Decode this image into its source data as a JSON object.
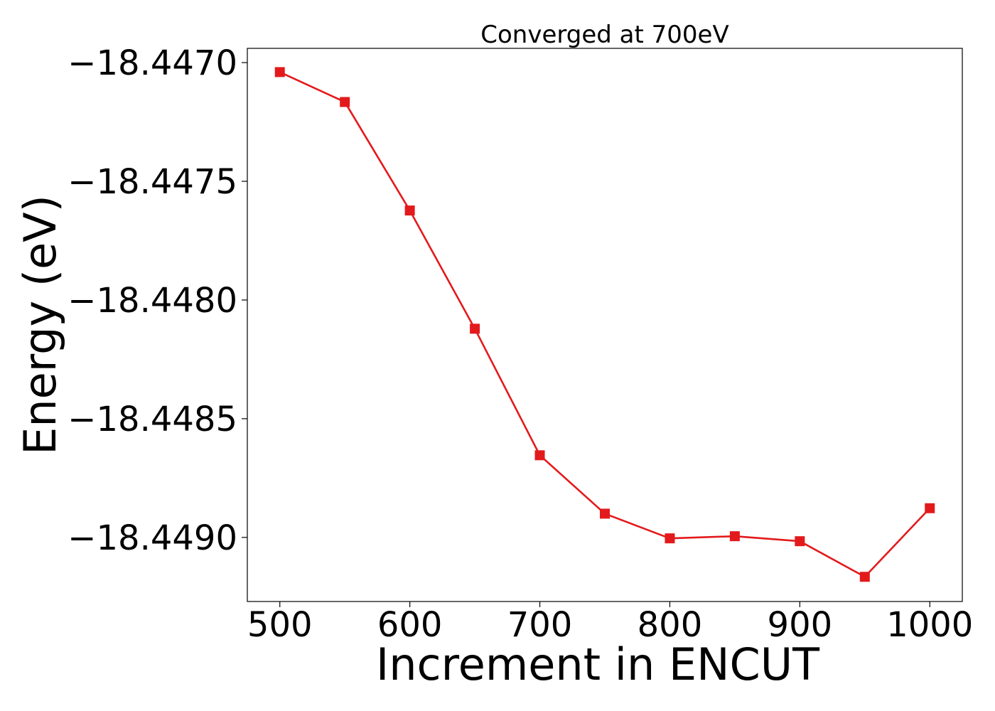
{
  "chart_data": {
    "type": "line",
    "title": "Converged at 700eV",
    "xlabel": "Increment in ENCUT",
    "ylabel": "Energy (eV)",
    "xlim": [
      475,
      1025
    ],
    "ylim": [
      -18.44927,
      -18.44694
    ],
    "xticks": [
      500,
      600,
      700,
      800,
      900,
      1000
    ],
    "xtick_labels": [
      "500",
      "600",
      "700",
      "800",
      "900",
      "1000"
    ],
    "yticks": [
      -18.447,
      -18.4475,
      -18.448,
      -18.4485,
      -18.449
    ],
    "ytick_labels": [
      "−18.4470",
      "−18.4475",
      "−18.4480",
      "−18.4485",
      "−18.4490"
    ],
    "grid": false,
    "series": [
      {
        "color": "#e31a1c",
        "marker": "square",
        "x": [
          500,
          550,
          600,
          650,
          700,
          750,
          800,
          850,
          900,
          950,
          1000
        ],
        "y": [
          -18.44704,
          -18.447166,
          -18.447623,
          -18.448121,
          -18.448654,
          -18.4489,
          -18.449004,
          -18.448995,
          -18.449016,
          -18.449166,
          -18.448877
        ]
      }
    ]
  }
}
